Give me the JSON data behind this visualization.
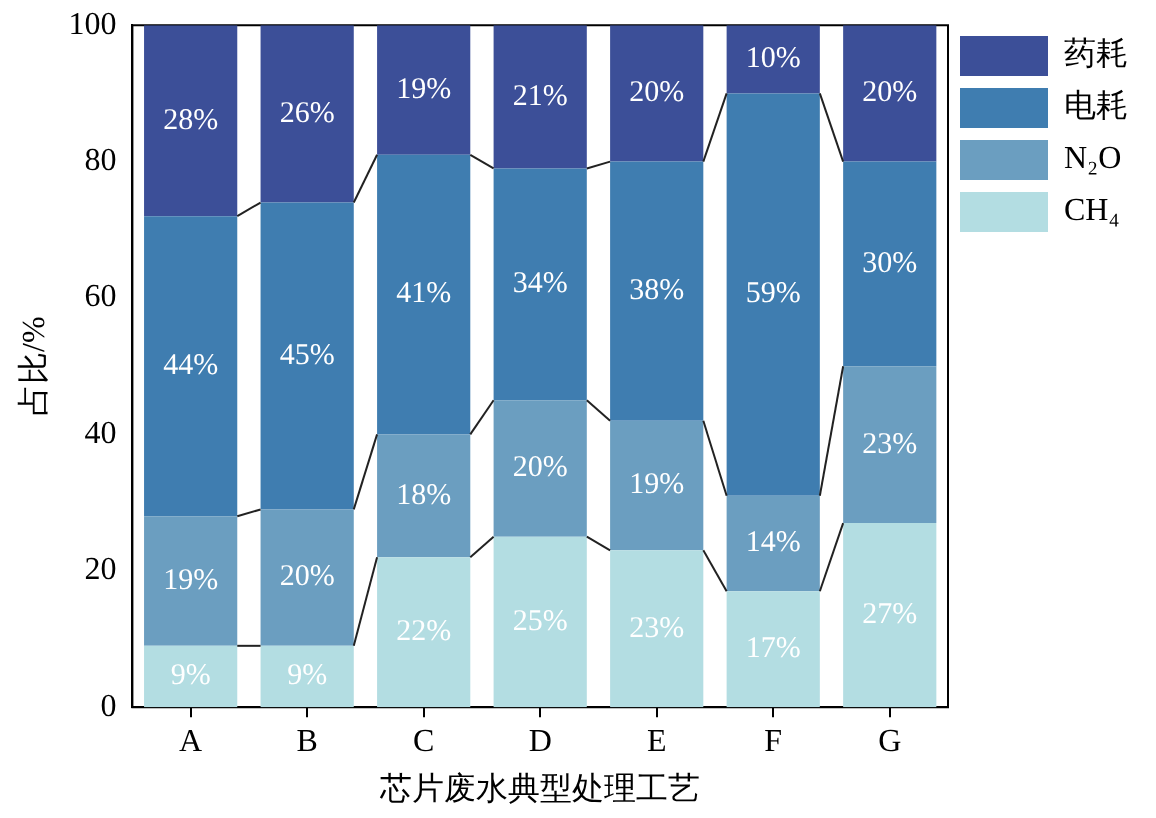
{
  "chart_data": {
    "type": "bar",
    "stacked": true,
    "xlabel": "芯片废水典型处理工艺",
    "ylabel": "占比/%",
    "categories": [
      "A",
      "B",
      "C",
      "D",
      "E",
      "F",
      "G"
    ],
    "ylim": [
      0,
      100
    ],
    "yticks": [
      0,
      20,
      40,
      60,
      80,
      100
    ],
    "grid": false,
    "legend": "top right",
    "series": [
      {
        "name": "CH₄",
        "color": "#b3dde2",
        "values": [
          9,
          9,
          22,
          25,
          23,
          17,
          27
        ],
        "value_labels": [
          "9%",
          "9%",
          "22%",
          "25%",
          "23%",
          "17%",
          "27%"
        ]
      },
      {
        "name": "N₂O",
        "color": "#6b9ec0",
        "values": [
          19,
          20,
          18,
          20,
          19,
          14,
          23
        ],
        "value_labels": [
          "19%",
          "20%",
          "18%",
          "20%",
          "19%",
          "14%",
          "23%"
        ]
      },
      {
        "name": "电耗",
        "color": "#3f7db0",
        "values": [
          44,
          45,
          41,
          34,
          38,
          59,
          30
        ],
        "value_labels": [
          "44%",
          "45%",
          "41%",
          "34%",
          "38%",
          "59%",
          "30%"
        ]
      },
      {
        "name": "药耗",
        "color": "#3c4f98",
        "values": [
          28,
          26,
          19,
          21,
          20,
          10,
          20
        ],
        "value_labels": [
          "28%",
          "26%",
          "19%",
          "21%",
          "20%",
          "10%",
          "20%"
        ]
      }
    ]
  }
}
